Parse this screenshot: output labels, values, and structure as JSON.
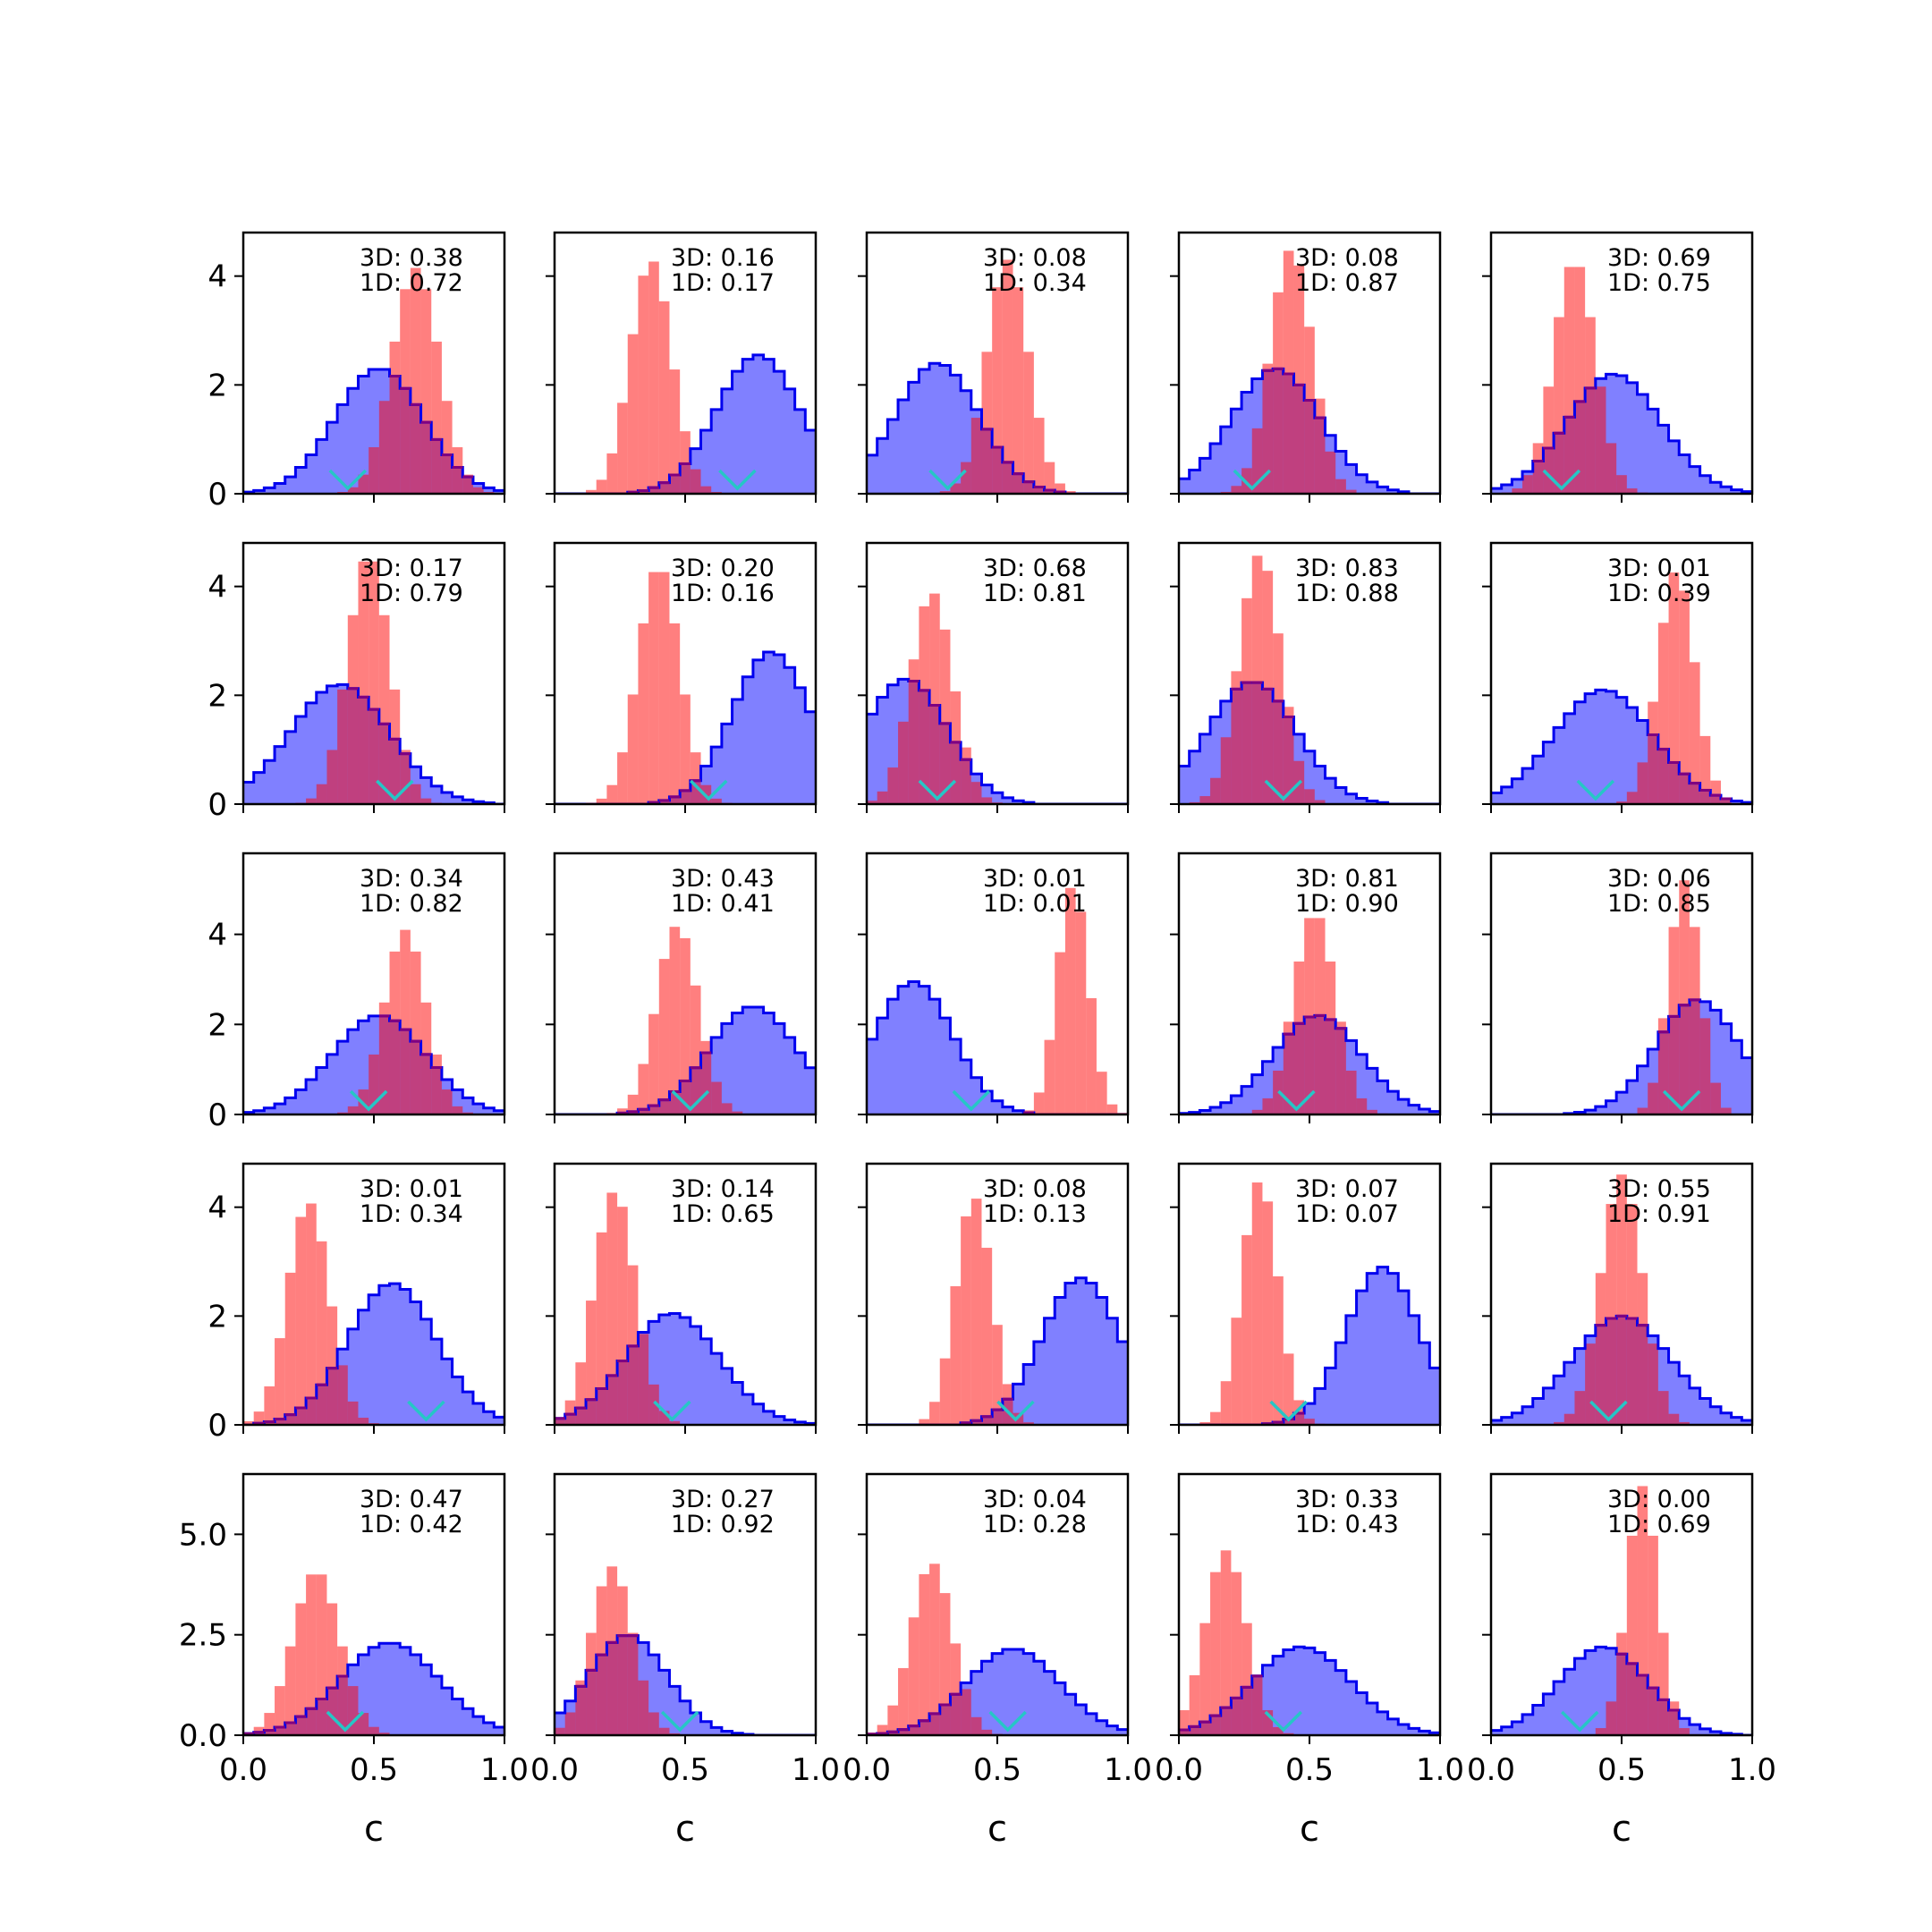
{
  "figure": {
    "rows": 5,
    "cols": 5,
    "xlabel": "c",
    "row_yticks": [
      [
        "0",
        "2",
        "4"
      ],
      [
        "0",
        "2",
        "4"
      ],
      [
        "0",
        "2",
        "4"
      ],
      [
        "0",
        "2",
        "4"
      ],
      [
        "0.0",
        "2.5",
        "5.0"
      ]
    ],
    "xticks": [
      "0.0",
      "0.5",
      "1.0"
    ],
    "colors": {
      "blue_line": "#0000ee",
      "blue_fill": "#8080ff",
      "red_fill": "#ff8080",
      "overlap_line": "#800080",
      "marker": "#26c6c6"
    }
  },
  "chart_data": [
    {
      "type": "histogram",
      "row": 0,
      "col": 0,
      "label_3d": "3D: 0.38",
      "label_1d": "1D: 0.72",
      "blue": {
        "mean": 0.52,
        "sd": 0.17,
        "peak": 2.3
      },
      "red": {
        "mean": 0.66,
        "sd": 0.09,
        "peak": 4.15
      },
      "marker_x": 0.4,
      "ylim": [
        0,
        4.8
      ],
      "xlim": [
        0,
        1
      ]
    },
    {
      "type": "histogram",
      "row": 0,
      "col": 1,
      "label_3d": "3D: 0.16",
      "label_1d": "1D: 0.17",
      "blue": {
        "mean": 0.78,
        "sd": 0.16,
        "peak": 2.55
      },
      "red": {
        "mean": 0.37,
        "sd": 0.08,
        "peak": 4.3
      },
      "marker_x": 0.7,
      "ylim": [
        0,
        4.8
      ],
      "xlim": [
        0,
        1
      ]
    },
    {
      "type": "histogram",
      "row": 0,
      "col": 2,
      "label_3d": "3D: 0.08",
      "label_1d": "1D: 0.34",
      "blue": {
        "mean": 0.27,
        "sd": 0.16,
        "peak": 2.4
      },
      "red": {
        "mean": 0.54,
        "sd": 0.08,
        "peak": 4.3
      },
      "marker_x": 0.31,
      "ylim": [
        0,
        4.8
      ],
      "xlim": [
        0,
        1
      ]
    },
    {
      "type": "histogram",
      "row": 0,
      "col": 3,
      "label_3d": "3D: 0.08",
      "label_1d": "1D: 0.87",
      "blue": {
        "mean": 0.37,
        "sd": 0.17,
        "peak": 2.3
      },
      "red": {
        "mean": 0.43,
        "sd": 0.08,
        "peak": 4.5
      },
      "marker_x": 0.28,
      "ylim": [
        0,
        4.8
      ],
      "xlim": [
        0,
        1
      ]
    },
    {
      "type": "histogram",
      "row": 0,
      "col": 4,
      "label_3d": "3D: 0.69",
      "label_1d": "1D: 0.75",
      "blue": {
        "mean": 0.47,
        "sd": 0.18,
        "peak": 2.2
      },
      "red": {
        "mean": 0.32,
        "sd": 0.08,
        "peak": 4.3
      },
      "marker_x": 0.27,
      "ylim": [
        0,
        4.8
      ],
      "xlim": [
        0,
        1
      ]
    },
    {
      "type": "histogram",
      "row": 1,
      "col": 0,
      "label_3d": "3D: 0.17",
      "label_1d": "1D: 0.79",
      "blue": {
        "mean": 0.37,
        "sd": 0.19,
        "peak": 2.2
      },
      "red": {
        "mean": 0.48,
        "sd": 0.08,
        "peak": 4.6
      },
      "marker_x": 0.58,
      "ylim": [
        0,
        4.8
      ],
      "xlim": [
        0,
        1
      ]
    },
    {
      "type": "histogram",
      "row": 1,
      "col": 1,
      "label_3d": "3D: 0.20",
      "label_1d": "1D: 0.16",
      "blue": {
        "mean": 0.83,
        "sd": 0.15,
        "peak": 2.8
      },
      "red": {
        "mean": 0.4,
        "sd": 0.08,
        "peak": 4.4
      },
      "marker_x": 0.59,
      "ylim": [
        0,
        4.8
      ],
      "xlim": [
        0,
        1
      ]
    },
    {
      "type": "histogram",
      "row": 1,
      "col": 2,
      "label_3d": "3D: 0.68",
      "label_1d": "1D: 0.81",
      "blue": {
        "mean": 0.15,
        "sd": 0.16,
        "peak": 2.3
      },
      "red": {
        "mean": 0.25,
        "sd": 0.08,
        "peak": 3.9
      },
      "marker_x": 0.27,
      "ylim": [
        0,
        4.8
      ],
      "xlim": [
        0,
        1
      ]
    },
    {
      "type": "histogram",
      "row": 1,
      "col": 3,
      "label_3d": "3D: 0.83",
      "label_1d": "1D: 0.88",
      "blue": {
        "mean": 0.28,
        "sd": 0.17,
        "peak": 2.25
      },
      "red": {
        "mean": 0.31,
        "sd": 0.08,
        "peak": 4.6
      },
      "marker_x": 0.4,
      "ylim": [
        0,
        4.8
      ],
      "xlim": [
        0,
        1
      ]
    },
    {
      "type": "histogram",
      "row": 1,
      "col": 4,
      "label_3d": "3D: 0.01",
      "label_1d": "1D: 0.39",
      "blue": {
        "mean": 0.43,
        "sd": 0.19,
        "peak": 2.1
      },
      "red": {
        "mean": 0.71,
        "sd": 0.07,
        "peak": 4.3
      },
      "marker_x": 0.4,
      "ylim": [
        0,
        4.8
      ],
      "xlim": [
        0,
        1
      ]
    },
    {
      "type": "histogram",
      "row": 2,
      "col": 0,
      "label_3d": "3D: 0.34",
      "label_1d": "1D: 0.82",
      "blue": {
        "mean": 0.52,
        "sd": 0.18,
        "peak": 2.2
      },
      "red": {
        "mean": 0.62,
        "sd": 0.08,
        "peak": 4.1
      },
      "marker_x": 0.48,
      "ylim": [
        0,
        5.8
      ],
      "xlim": [
        0,
        1
      ]
    },
    {
      "type": "histogram",
      "row": 2,
      "col": 1,
      "label_3d": "3D: 0.43",
      "label_1d": "1D: 0.41",
      "blue": {
        "mean": 0.76,
        "sd": 0.17,
        "peak": 2.4
      },
      "red": {
        "mean": 0.47,
        "sd": 0.08,
        "peak": 4.2
      },
      "marker_x": 0.52,
      "ylim": [
        0,
        5.8
      ],
      "xlim": [
        0,
        1
      ]
    },
    {
      "type": "histogram",
      "row": 2,
      "col": 2,
      "label_3d": "3D: 0.01",
      "label_1d": "1D: 0.01",
      "blue": {
        "mean": 0.18,
        "sd": 0.15,
        "peak": 2.95
      },
      "red": {
        "mean": 0.79,
        "sd": 0.06,
        "peak": 5.1
      },
      "marker_x": 0.4,
      "ylim": [
        0,
        5.8
      ],
      "xlim": [
        0,
        1
      ]
    },
    {
      "type": "histogram",
      "row": 2,
      "col": 3,
      "label_3d": "3D: 0.81",
      "label_1d": "1D: 0.90",
      "blue": {
        "mean": 0.53,
        "sd": 0.17,
        "peak": 2.2
      },
      "red": {
        "mean": 0.52,
        "sd": 0.08,
        "peak": 4.5
      },
      "marker_x": 0.45,
      "ylim": [
        0,
        5.8
      ],
      "xlim": [
        0,
        1
      ]
    },
    {
      "type": "histogram",
      "row": 2,
      "col": 4,
      "label_3d": "3D: 0.06",
      "label_1d": "1D: 0.85",
      "blue": {
        "mean": 0.79,
        "sd": 0.16,
        "peak": 2.55
      },
      "red": {
        "mean": 0.74,
        "sd": 0.06,
        "peak": 5.2
      },
      "marker_x": 0.73,
      "ylim": [
        0,
        5.8
      ],
      "xlim": [
        0,
        1
      ]
    },
    {
      "type": "histogram",
      "row": 3,
      "col": 0,
      "label_3d": "3D: 0.01",
      "label_1d": "1D: 0.34",
      "blue": {
        "mean": 0.57,
        "sd": 0.17,
        "peak": 2.6
      },
      "red": {
        "mean": 0.25,
        "sd": 0.08,
        "peak": 4.1
      },
      "marker_x": 0.7,
      "ylim": [
        0,
        4.8
      ],
      "xlim": [
        0,
        1
      ]
    },
    {
      "type": "histogram",
      "row": 3,
      "col": 1,
      "label_3d": "3D: 0.14",
      "label_1d": "1D: 0.65",
      "blue": {
        "mean": 0.45,
        "sd": 0.18,
        "peak": 2.05
      },
      "red": {
        "mean": 0.23,
        "sd": 0.08,
        "peak": 4.3
      },
      "marker_x": 0.45,
      "ylim": [
        0,
        4.8
      ],
      "xlim": [
        0,
        1
      ]
    },
    {
      "type": "histogram",
      "row": 3,
      "col": 2,
      "label_3d": "3D: 0.08",
      "label_1d": "1D: 0.13",
      "blue": {
        "mean": 0.82,
        "sd": 0.15,
        "peak": 2.7
      },
      "red": {
        "mean": 0.41,
        "sd": 0.07,
        "peak": 4.2
      },
      "marker_x": 0.57,
      "ylim": [
        0,
        4.8
      ],
      "xlim": [
        0,
        1
      ]
    },
    {
      "type": "histogram",
      "row": 3,
      "col": 3,
      "label_3d": "3D: 0.07",
      "label_1d": "1D: 0.07",
      "blue": {
        "mean": 0.78,
        "sd": 0.14,
        "peak": 2.9
      },
      "red": {
        "mean": 0.31,
        "sd": 0.07,
        "peak": 4.5
      },
      "marker_x": 0.42,
      "ylim": [
        0,
        4.8
      ],
      "xlim": [
        0,
        1
      ]
    },
    {
      "type": "histogram",
      "row": 3,
      "col": 4,
      "label_3d": "3D: 0.55",
      "label_1d": "1D: 0.91",
      "blue": {
        "mean": 0.5,
        "sd": 0.19,
        "peak": 2.0
      },
      "red": {
        "mean": 0.5,
        "sd": 0.08,
        "peak": 4.6
      },
      "marker_x": 0.45,
      "ylim": [
        0,
        4.8
      ],
      "xlim": [
        0,
        1
      ]
    },
    {
      "type": "histogram",
      "row": 4,
      "col": 0,
      "label_3d": "3D: 0.47",
      "label_1d": "1D: 0.42",
      "blue": {
        "mean": 0.56,
        "sd": 0.19,
        "peak": 2.3
      },
      "red": {
        "mean": 0.28,
        "sd": 0.09,
        "peak": 4.1
      },
      "marker_x": 0.39,
      "ylim": [
        0,
        6.5
      ],
      "xlim": [
        0,
        1
      ]
    },
    {
      "type": "histogram",
      "row": 4,
      "col": 1,
      "label_3d": "3D: 0.27",
      "label_1d": "1D: 0.92",
      "blue": {
        "mean": 0.28,
        "sd": 0.15,
        "peak": 2.5
      },
      "red": {
        "mean": 0.22,
        "sd": 0.08,
        "peak": 4.2
      },
      "marker_x": 0.48,
      "ylim": [
        0,
        6.5
      ],
      "xlim": [
        0,
        1
      ]
    },
    {
      "type": "histogram",
      "row": 4,
      "col": 2,
      "label_3d": "3D: 0.04",
      "label_1d": "1D: 0.28",
      "blue": {
        "mean": 0.56,
        "sd": 0.18,
        "peak": 2.15
      },
      "red": {
        "mean": 0.25,
        "sd": 0.08,
        "peak": 4.3
      },
      "marker_x": 0.54,
      "ylim": [
        0,
        6.5
      ],
      "xlim": [
        0,
        1
      ]
    },
    {
      "type": "histogram",
      "row": 4,
      "col": 3,
      "label_3d": "3D: 0.33",
      "label_1d": "1D: 0.43",
      "blue": {
        "mean": 0.47,
        "sd": 0.19,
        "peak": 2.2
      },
      "red": {
        "mean": 0.18,
        "sd": 0.08,
        "peak": 4.6
      },
      "marker_x": 0.4,
      "ylim": [
        0,
        6.5
      ],
      "xlim": [
        0,
        1
      ]
    },
    {
      "type": "histogram",
      "row": 4,
      "col": 4,
      "label_3d": "3D: 0.00",
      "label_1d": "1D: 0.69",
      "blue": {
        "mean": 0.43,
        "sd": 0.17,
        "peak": 2.2
      },
      "red": {
        "mean": 0.58,
        "sd": 0.06,
        "peak": 6.2
      },
      "marker_x": 0.34,
      "ylim": [
        0,
        6.5
      ],
      "xlim": [
        0,
        1
      ]
    }
  ]
}
